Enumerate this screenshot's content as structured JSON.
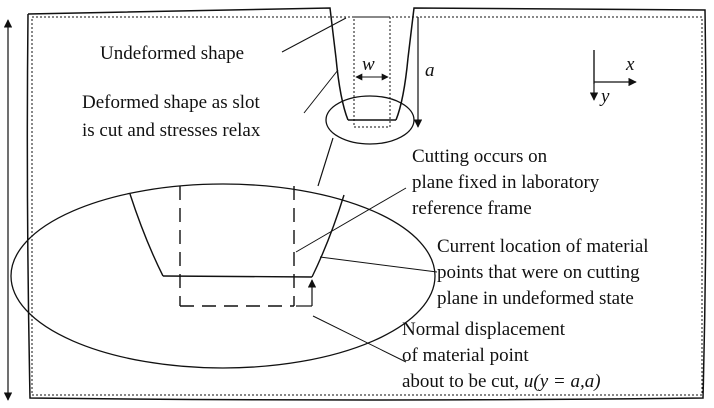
{
  "labels": {
    "undeformed_shape": "Undeformed shape",
    "deformed_line1": "Deformed shape as slot",
    "deformed_line2": "is cut and stresses relax",
    "cutting_line1": "Cutting occurs on",
    "cutting_line2": "plane fixed in laboratory",
    "cutting_line3": "reference frame",
    "current_line1": "Current location of material",
    "current_line2": "points that were on cutting",
    "current_line3": "plane in undeformed state",
    "normal_line1": "Normal displacement",
    "normal_line2": "of material point",
    "normal_line3_prefix": "about to be cut, ",
    "normal_line3_math": "u(y = a,a)"
  },
  "symbols": {
    "slot_width": "w",
    "slot_depth": "a",
    "x_axis": "x",
    "y_axis": "y"
  },
  "colors": {
    "ink": "#111111",
    "background": "#ffffff"
  }
}
